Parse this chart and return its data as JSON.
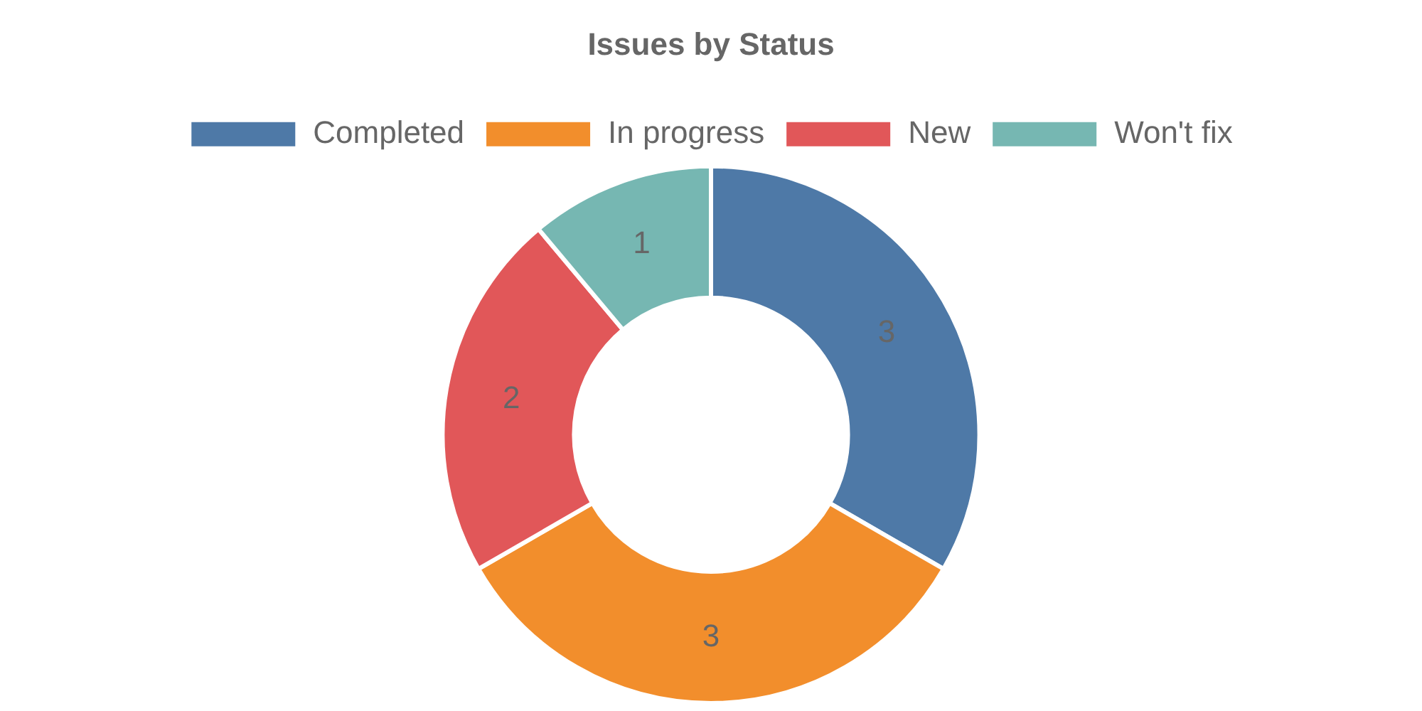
{
  "chart_data": {
    "type": "donut",
    "title": "Issues by Status",
    "categories": [
      "Completed",
      "In progress",
      "New",
      "Won't fix"
    ],
    "values": [
      3,
      3,
      2,
      1
    ],
    "colors": [
      "#4e79a7",
      "#f28e2c",
      "#e15759",
      "#76b7b2"
    ],
    "legend": "top",
    "data_labels": true
  }
}
